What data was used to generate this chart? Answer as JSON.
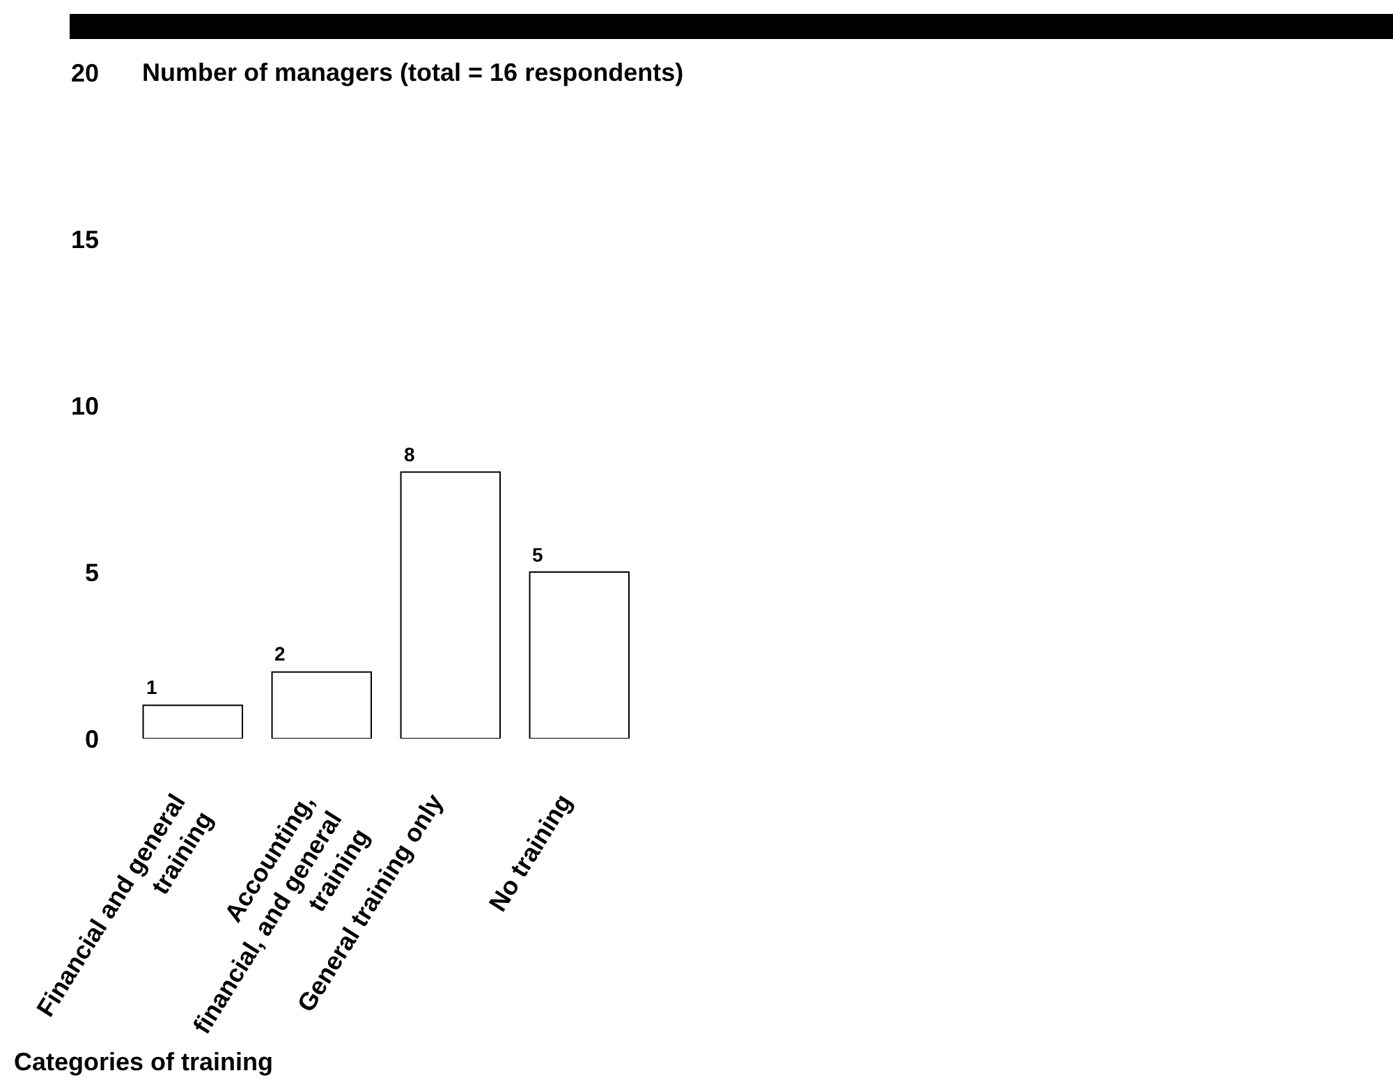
{
  "chart_data": {
    "type": "bar",
    "ylabel": "Number of managers (total = 16 respondents)",
    "xlabel": "Categories of training",
    "categories": [
      "Financial and general\ntraining",
      "Accounting,\nfinancial, and general\ntraining",
      "General training only",
      "No training"
    ],
    "values": [
      1,
      2,
      8,
      5
    ],
    "color": "#ffffff",
    "ylim": [
      0,
      20
    ],
    "yticks": [
      0,
      5,
      10,
      15,
      20
    ],
    "data_labels": true
  }
}
